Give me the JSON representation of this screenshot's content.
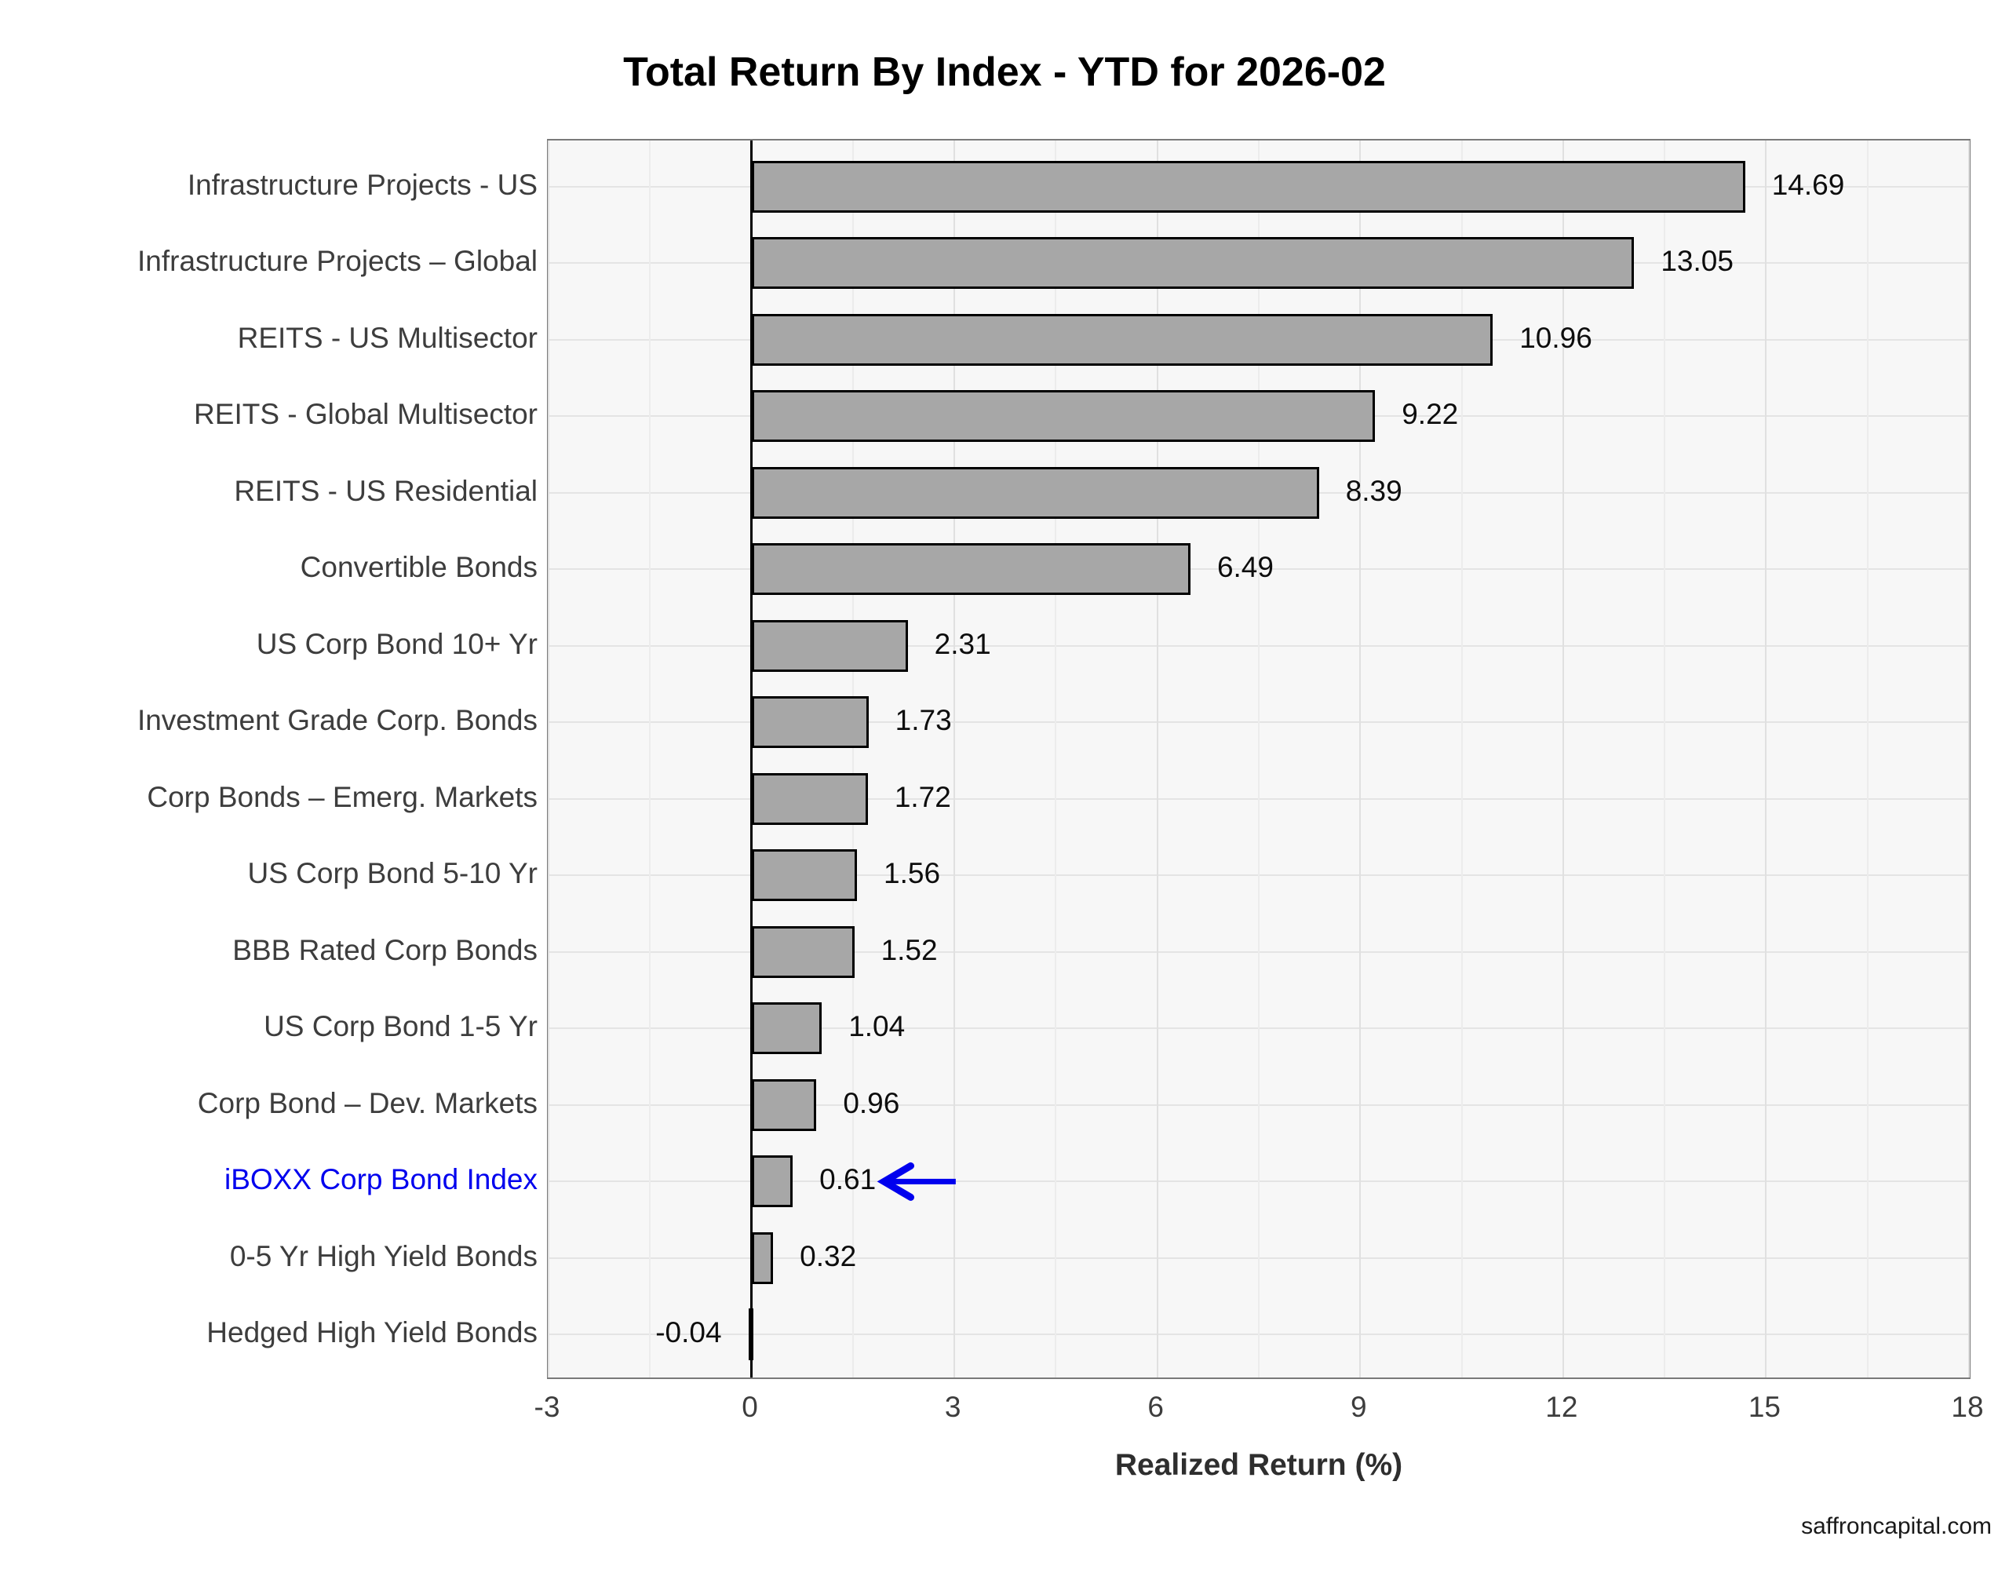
{
  "title": "Total Return By Index - YTD for 2026-02",
  "footer": {
    "watermark": "saffroncapital.com"
  },
  "chart_data": {
    "type": "bar",
    "orientation": "horizontal",
    "title": "Total Return By Index - YTD for 2026-02",
    "xlabel": "Realized Return (%)",
    "ylabel": "",
    "xlim": [
      -3,
      18
    ],
    "xticks": [
      -3,
      0,
      3,
      6,
      9,
      12,
      15,
      18
    ],
    "minor_grid_step": 1.5,
    "grid": true,
    "legend": "none",
    "bar_fill": "#a7a7a7",
    "bar_stroke": "#000000",
    "highlight_color": "#0000ee",
    "categories": [
      "Infrastructure Projects - US",
      "Infrastructure Projects – Global",
      "REITS - US Multisector",
      "REITS - Global Multisector",
      "REITS - US Residential",
      "Convertible Bonds",
      "US Corp Bond 10+ Yr",
      "Investment Grade Corp. Bonds",
      "Corp Bonds – Emerg. Markets",
      "US Corp Bond 5-10 Yr",
      "BBB Rated Corp Bonds",
      "US Corp Bond 1-5 Yr",
      "Corp Bond – Dev. Markets",
      "iBOXX Corp Bond Index",
      "0-5 Yr High Yield Bonds",
      "Hedged High Yield Bonds"
    ],
    "values": [
      14.69,
      13.05,
      10.96,
      9.22,
      8.39,
      6.49,
      2.31,
      1.73,
      1.72,
      1.56,
      1.52,
      1.04,
      0.96,
      0.61,
      0.32,
      -0.04
    ],
    "value_labels": [
      "14.69",
      "13.05",
      "10.96",
      "9.22",
      "8.39",
      "6.49",
      "2.31",
      "1.73",
      "1.72",
      "1.56",
      "1.52",
      "1.04",
      "0.96",
      "0.61",
      "0.32",
      "-0.04"
    ],
    "highlight_index": 13,
    "annotation": {
      "type": "arrow",
      "row_index": 13,
      "x_from": 3.02,
      "x_to": 1.96,
      "color": "#0000ee"
    }
  }
}
